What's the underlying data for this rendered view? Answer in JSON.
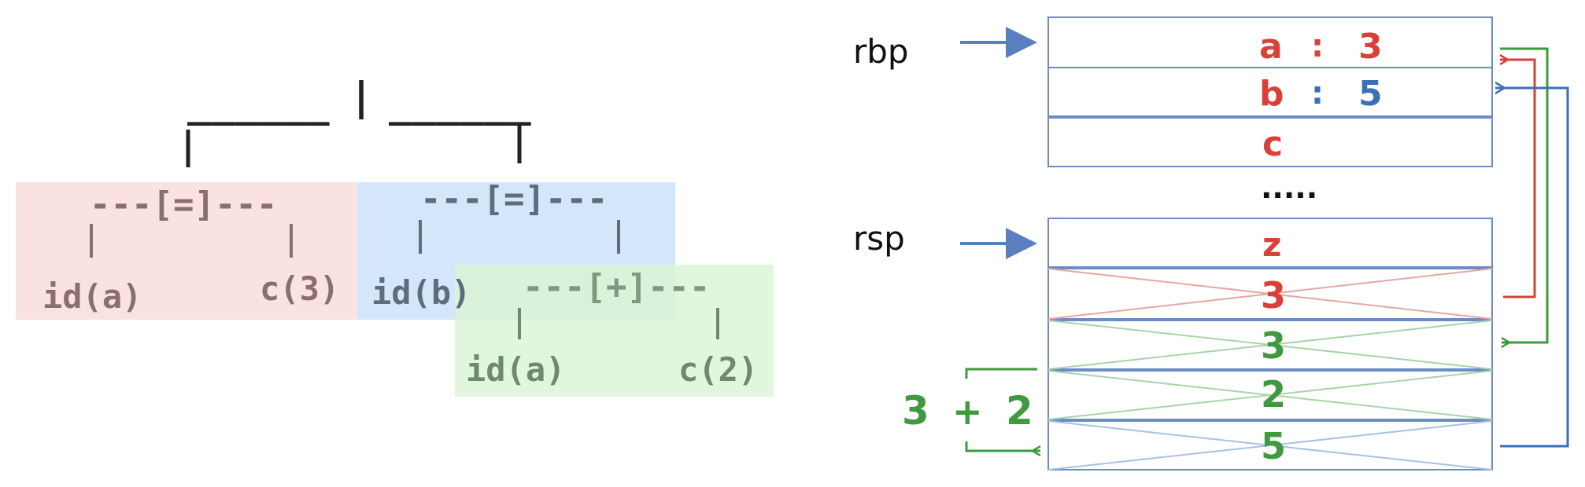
{
  "tree": {
    "root": {
      "left": "______",
      "bar": "|",
      "right": "______"
    },
    "assign_a": {
      "label": "---[=]---",
      "left_child": "id(a)",
      "right_child": "c(3)"
    },
    "assign_b": {
      "label": "---[=]---",
      "left_child": "id(b)"
    },
    "add": {
      "label": "---[+]---",
      "left_child": "id(a)",
      "right_child": "c(2)"
    },
    "colors": {
      "red_box": "#f9e2e0",
      "blue_box": "#cfe4f9",
      "green_box": "#d8f5d5"
    }
  },
  "stack": {
    "rbp_label": "rbp",
    "rsp_label": "rsp",
    "top_slots": [
      {
        "name": "a",
        "sep": ":",
        "value": "3"
      },
      {
        "name": "b",
        "sep": ":",
        "value": "5"
      },
      {
        "name": "c"
      }
    ],
    "ellipsis": ".....",
    "bottom_slots": [
      "z",
      "3",
      "3",
      "2",
      "5"
    ],
    "expression": {
      "a": "3",
      "op": "+",
      "b": "2"
    },
    "colors": {
      "red": "#d84038",
      "blue": "#3b6fb8",
      "green": "#3f9a3f",
      "border": "#6b8cc7"
    }
  }
}
